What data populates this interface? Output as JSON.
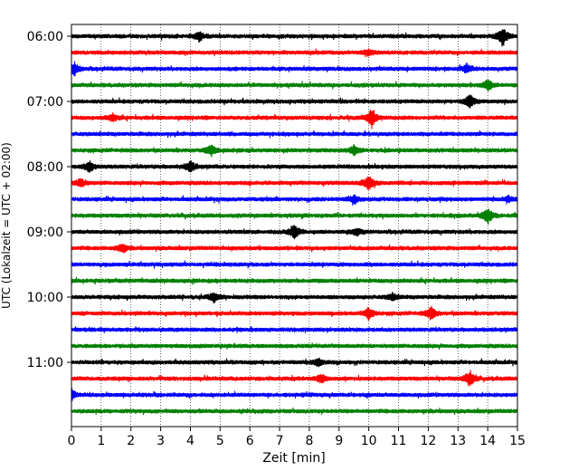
{
  "chart_data": {
    "type": "line",
    "title": "",
    "xlabel": "Zeit  [min]",
    "ylabel": "UTC (Lokalzeit = UTC + 02:00)",
    "xlim": [
      0,
      15
    ],
    "x_ticks": [
      "0",
      "1",
      "2",
      "3",
      "4",
      "5",
      "6",
      "7",
      "8",
      "9",
      "10",
      "11",
      "12",
      "13",
      "14",
      "15"
    ],
    "y_ticks": [
      "06:00",
      "07:00",
      "08:00",
      "09:00",
      "10:00",
      "11:00"
    ],
    "grid": "vertical dotted at each minute",
    "trace_colors": [
      "#000000",
      "#ff0000",
      "#0000ff",
      "#008000"
    ],
    "trace_start_times": [
      "06:00",
      "06:15",
      "06:30",
      "06:45",
      "07:00",
      "07:15",
      "07:30",
      "07:45",
      "08:00",
      "08:15",
      "08:30",
      "08:45",
      "09:00",
      "09:15",
      "09:30",
      "09:45",
      "10:00",
      "10:15",
      "10:30",
      "10:45",
      "11:00",
      "11:15",
      "11:30",
      "11:45"
    ],
    "events": [
      {
        "trace": 0,
        "minute": 14.5,
        "amp": 11
      },
      {
        "trace": 0,
        "minute": 4.3,
        "amp": 5
      },
      {
        "trace": 1,
        "minute": 10.0,
        "amp": 3
      },
      {
        "trace": 2,
        "minute": 0.1,
        "amp": 7
      },
      {
        "trace": 2,
        "minute": 13.3,
        "amp": 5
      },
      {
        "trace": 3,
        "minute": 14.0,
        "amp": 6
      },
      {
        "trace": 4,
        "minute": 13.4,
        "amp": 7
      },
      {
        "trace": 5,
        "minute": 10.1,
        "amp": 10
      },
      {
        "trace": 5,
        "minute": 1.4,
        "amp": 4
      },
      {
        "trace": 7,
        "minute": 4.7,
        "amp": 6
      },
      {
        "trace": 7,
        "minute": 9.5,
        "amp": 5
      },
      {
        "trace": 8,
        "minute": 0.6,
        "amp": 6
      },
      {
        "trace": 8,
        "minute": 4.0,
        "amp": 6
      },
      {
        "trace": 9,
        "minute": 0.3,
        "amp": 5
      },
      {
        "trace": 9,
        "minute": 10.0,
        "amp": 8
      },
      {
        "trace": 10,
        "minute": 9.5,
        "amp": 4
      },
      {
        "trace": 10,
        "minute": 14.7,
        "amp": 3
      },
      {
        "trace": 11,
        "minute": 14.0,
        "amp": 9
      },
      {
        "trace": 12,
        "minute": 7.5,
        "amp": 8
      },
      {
        "trace": 12,
        "minute": 9.6,
        "amp": 4
      },
      {
        "trace": 13,
        "minute": 1.7,
        "amp": 5
      },
      {
        "trace": 16,
        "minute": 4.8,
        "amp": 5
      },
      {
        "trace": 16,
        "minute": 10.8,
        "amp": 4
      },
      {
        "trace": 17,
        "minute": 10.0,
        "amp": 7
      },
      {
        "trace": 17,
        "minute": 12.1,
        "amp": 7
      },
      {
        "trace": 20,
        "minute": 8.3,
        "amp": 4
      },
      {
        "trace": 21,
        "minute": 13.4,
        "amp": 9
      },
      {
        "trace": 21,
        "minute": 8.4,
        "amp": 5
      },
      {
        "trace": 22,
        "minute": 0.0,
        "amp": 6
      }
    ]
  }
}
